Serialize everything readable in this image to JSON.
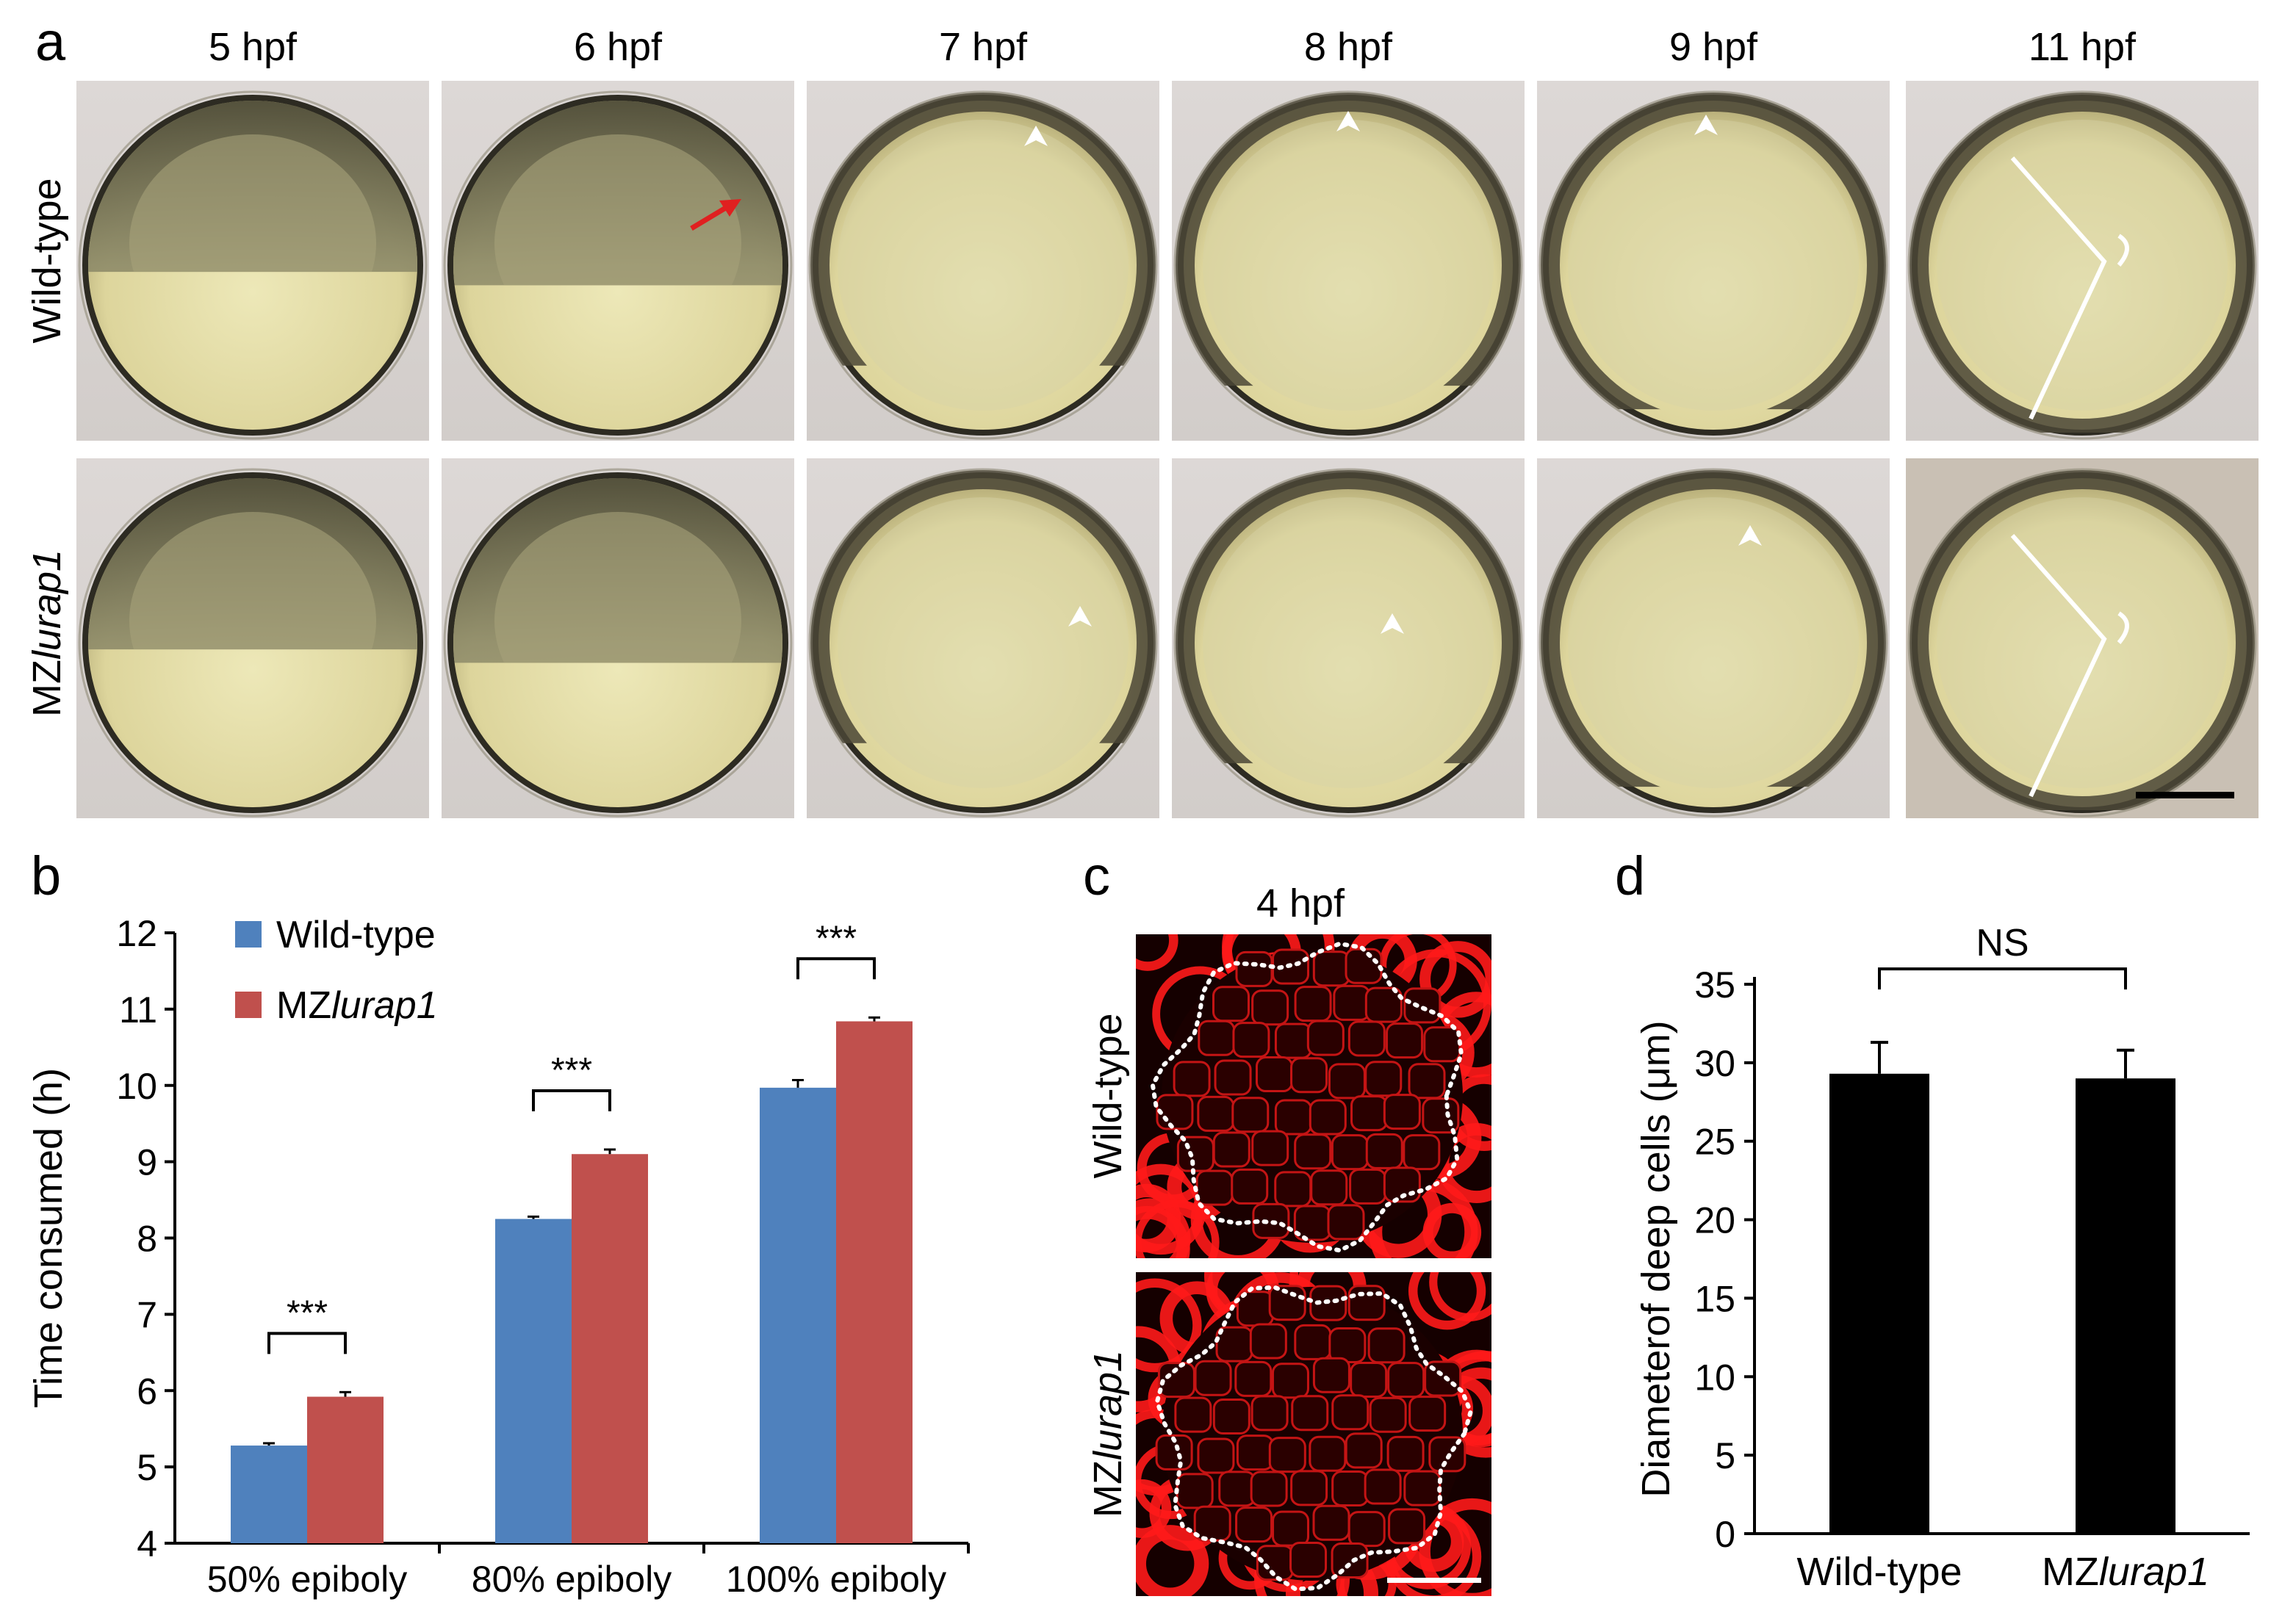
{
  "panel_a": {
    "letter": "a",
    "stages": [
      "5 hpf",
      "6 hpf",
      "7 hpf",
      "8 hpf",
      "9 hpf",
      "11 hpf"
    ],
    "rows": [
      {
        "label": "Wild-type",
        "label_prefix": "",
        "label_italic": ""
      },
      {
        "label": "",
        "label_prefix": "MZ",
        "label_italic": "lurap1"
      }
    ]
  },
  "panel_b": {
    "letter": "b",
    "legend": [
      {
        "prefix": "Wild-type",
        "italic": "",
        "color": "#4f81bd"
      },
      {
        "prefix": "MZ",
        "italic": "lurap1",
        "color": "#c0504d"
      }
    ]
  },
  "panel_c": {
    "letter": "c",
    "title": "4 hpf",
    "rows": [
      {
        "prefix": "Wild-type",
        "italic": ""
      },
      {
        "prefix": "MZ",
        "italic": "lurap1"
      }
    ]
  },
  "panel_d": {
    "letter": "d",
    "x_labels": [
      {
        "prefix": "Wild-type",
        "italic": ""
      },
      {
        "prefix": "MZ",
        "italic": "lurap1"
      }
    ]
  },
  "chart_data": [
    {
      "type": "bar",
      "categories": [
        "50% epiboly",
        "80% epiboly",
        "100% epiboly"
      ],
      "series": [
        {
          "name": "Wild-type",
          "values": [
            5.28,
            8.25,
            9.97
          ],
          "errors": [
            0.03,
            0.03,
            0.1
          ],
          "color": "#4f81bd"
        },
        {
          "name": "MZlurap1",
          "values": [
            5.92,
            9.1,
            10.84
          ],
          "errors": [
            0.06,
            0.06,
            0.05
          ],
          "color": "#c0504d"
        }
      ],
      "title": "",
      "xlabel": "",
      "ylabel": "Time consumed (h)",
      "ylim": [
        4,
        12
      ],
      "yticks": [
        4,
        5,
        6,
        7,
        8,
        9,
        10,
        11,
        12
      ],
      "significance": [
        "***",
        "***",
        "***"
      ],
      "legend": "top-left",
      "grid": false
    },
    {
      "type": "bar",
      "categories": [
        "Wild-type",
        "MZlurap1"
      ],
      "values": [
        29.3,
        29.0
      ],
      "errors": [
        2.0,
        1.8
      ],
      "color": "#000000",
      "title": "",
      "xlabel": "",
      "ylabel": "Diameterof deep cells (μm)",
      "ylim": [
        0,
        35
      ],
      "yticks": [
        0,
        5,
        10,
        15,
        20,
        25,
        30,
        35
      ],
      "significance": "NS",
      "grid": false
    }
  ]
}
